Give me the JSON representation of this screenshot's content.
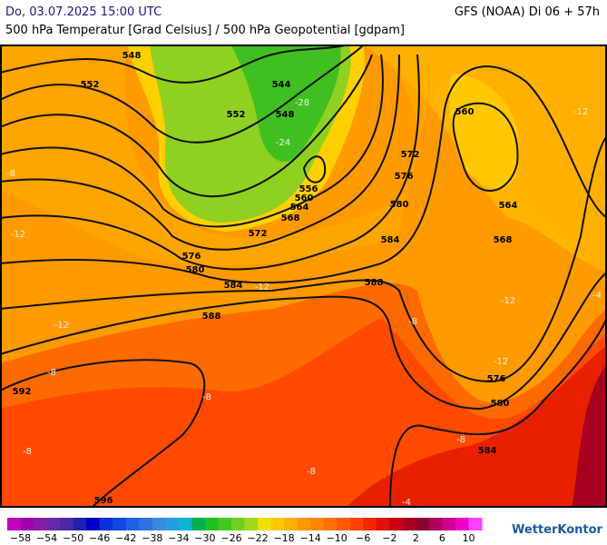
{
  "header": {
    "datetime": "Do, 03.07.2025 15:00 UTC",
    "model": "GFS (NOAA) Di 06 + 57h",
    "subtitle": "500 hPa Temperatur [Grad Celsius] / 500 hPa Geopotential [gdpam]"
  },
  "map": {
    "geopotential_labels": [
      "548",
      "552",
      "544",
      "552",
      "548",
      "560",
      "572",
      "576",
      "556",
      "560",
      "564",
      "580",
      "564",
      "568",
      "572",
      "584",
      "568",
      "576",
      "580",
      "584",
      "588",
      "588",
      "592",
      "576",
      "580",
      "584",
      "596"
    ],
    "temperature_labels": [
      "-28",
      "-24",
      "-12",
      "-8",
      "-12",
      "-12",
      "-8",
      "-8",
      "-8",
      "-8",
      "-8",
      "-4",
      "-4",
      "-8",
      "-12",
      "-12",
      "-12"
    ]
  },
  "colorbar": {
    "colors": [
      "#c000c0",
      "#a000b0",
      "#8a1aa8",
      "#6a28a8",
      "#4a2aa8",
      "#2020b0",
      "#0000c8",
      "#0a30d8",
      "#1048e0",
      "#2060e0",
      "#3070e0",
      "#3c88dc",
      "#20a0e0",
      "#10b4d0",
      "#00b050",
      "#20c020",
      "#40c820",
      "#70d020",
      "#a0d820",
      "#f0e000",
      "#ffc800",
      "#ffb000",
      "#ff9800",
      "#ff8400",
      "#ff7000",
      "#ff5a00",
      "#ff4000",
      "#f02800",
      "#e01010",
      "#c80010",
      "#a80020",
      "#900030",
      "#b00060",
      "#d00090",
      "#f000c0",
      "#ff40ff"
    ],
    "labels": [
      "−58",
      "−54",
      "−50",
      "−46",
      "−42",
      "−38",
      "−34",
      "−30",
      "−26",
      "−22",
      "−18",
      "−14",
      "−10",
      "−6",
      "−2",
      "2",
      "6",
      "10"
    ]
  },
  "logo": "WetterKontor"
}
